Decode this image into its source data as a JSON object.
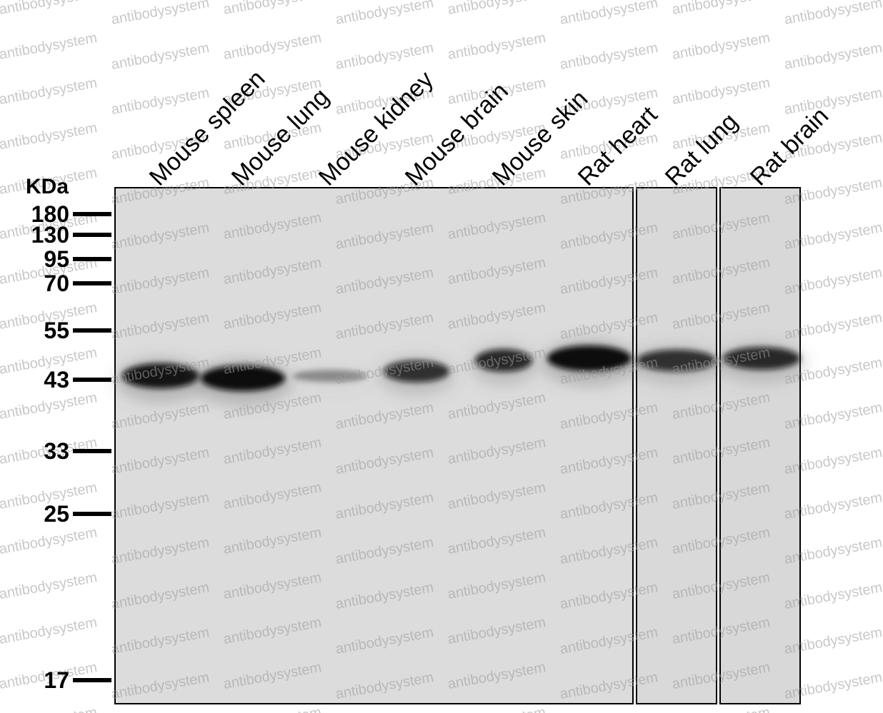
{
  "units_label": "KDa",
  "markers": [
    {
      "label": "180",
      "kda": 180
    },
    {
      "label": "130",
      "kda": 130
    },
    {
      "label": "95",
      "kda": 95
    },
    {
      "label": "70",
      "kda": 70
    },
    {
      "label": "55",
      "kda": 55
    },
    {
      "label": "43",
      "kda": 43
    },
    {
      "label": "33",
      "kda": 33
    },
    {
      "label": "25",
      "kda": 25
    },
    {
      "label": "17",
      "kda": 17
    }
  ],
  "lanes": [
    {
      "label": "Mouse spleen",
      "band_kda": 43.5,
      "intensity": 0.95
    },
    {
      "label": "Mouse lung",
      "band_kda": 43,
      "intensity": 1.0
    },
    {
      "label": "Mouse kidney",
      "band_kda": 43.5,
      "intensity": 0.15
    },
    {
      "label": "Mouse brain",
      "band_kda": 44.5,
      "intensity": 0.75
    },
    {
      "label": "Mouse skin",
      "band_kda": 47,
      "intensity": 0.8
    },
    {
      "label": "Rat heart",
      "band_kda": 47.5,
      "intensity": 1.0
    },
    {
      "label": "Rat lung",
      "band_kda": 47,
      "intensity": 0.75
    },
    {
      "label": "Rat brain",
      "band_kda": 47.5,
      "intensity": 0.8
    }
  ],
  "panels": [
    {
      "name": "panel-1",
      "lanes": [
        "Mouse spleen",
        "Mouse lung",
        "Mouse kidney",
        "Mouse brain",
        "Mouse skin",
        "Rat heart"
      ]
    },
    {
      "name": "panel-2",
      "lanes": [
        "Rat lung"
      ]
    },
    {
      "name": "panel-3",
      "lanes": [
        "Rat brain"
      ]
    }
  ],
  "watermark": "antibodysystem",
  "colors": {
    "membrane": "#dcdcdc",
    "band": "#0a0a0a",
    "marker": "#000000"
  }
}
